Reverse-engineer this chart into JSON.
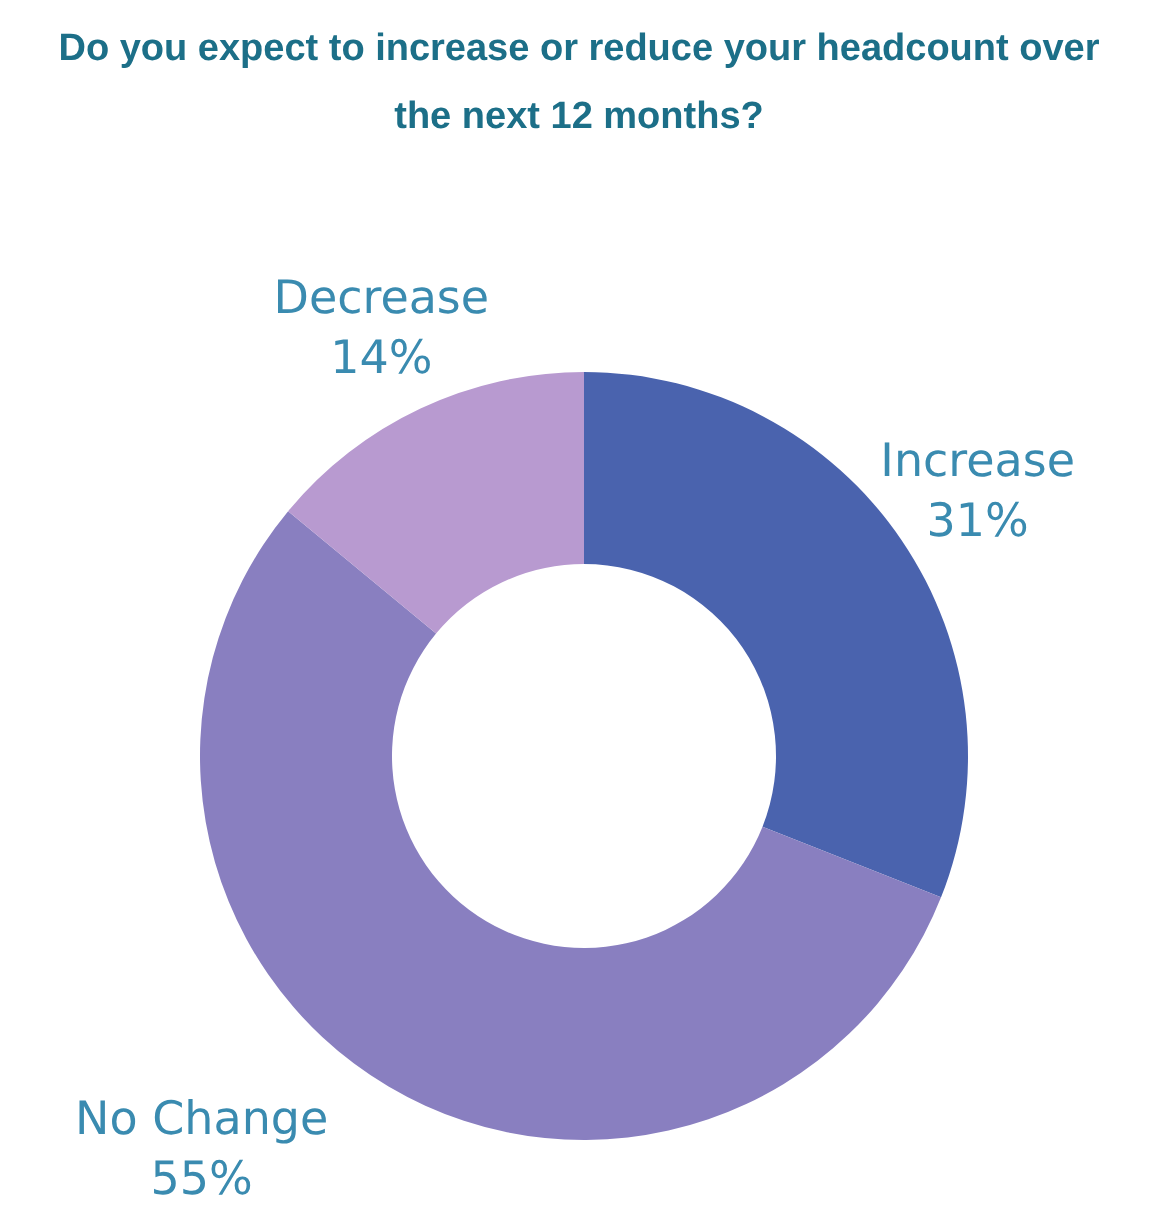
{
  "chart_data": {
    "type": "donut",
    "title": "Do you expect to increase or reduce your headcount over the next 12 months?",
    "categories": [
      "Increase",
      "No Change",
      "Decrease"
    ],
    "values": [
      31,
      55,
      14
    ],
    "value_labels": [
      "31%",
      "55%",
      "14%"
    ],
    "colors": [
      "#4a63ae",
      "#897fc0",
      "#b89ad0"
    ]
  }
}
